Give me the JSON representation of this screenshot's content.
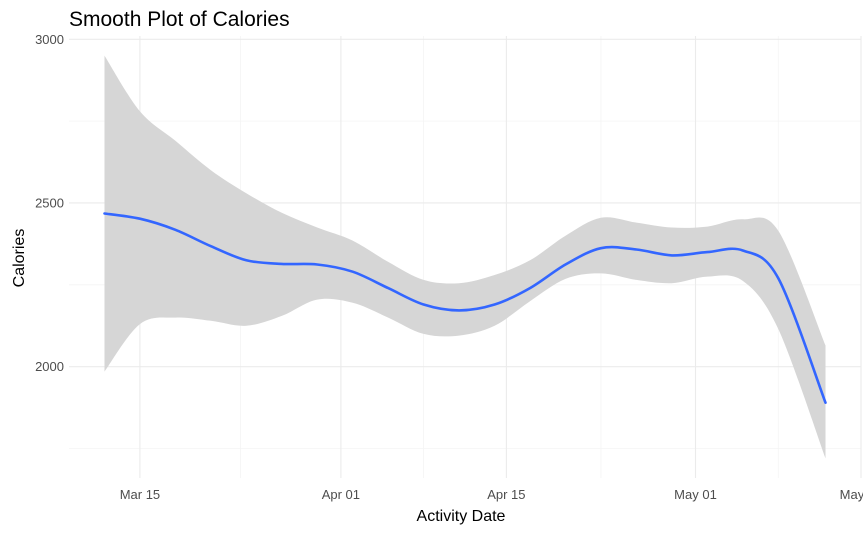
{
  "chart_data": {
    "type": "line",
    "title": "Smooth Plot of Calories",
    "xlabel": "Activity Date",
    "ylabel": "Calories",
    "x_ticks": [
      {
        "label": "Mar 15",
        "date": "2016-03-15"
      },
      {
        "label": "Apr 01",
        "date": "2016-04-01"
      },
      {
        "label": "Apr 15",
        "date": "2016-04-15"
      },
      {
        "label": "May 01",
        "date": "2016-05-01"
      },
      {
        "label": "May 15",
        "date": "2016-05-15"
      }
    ],
    "x_range": [
      "2016-03-09",
      "2016-05-15"
    ],
    "y_ticks": [
      2000,
      2500,
      3000
    ],
    "ylim": [
      1660,
      3010
    ],
    "grid": true,
    "colors": {
      "line": "#3366ff",
      "ribbon": "#d6d6d6",
      "grid_major": "#ebebeb",
      "grid_minor": "#f4f4f4"
    },
    "series": [
      {
        "x": [
          "2016-03-12",
          "2016-03-15",
          "2016-03-18",
          "2016-03-21",
          "2016-03-24",
          "2016-03-27",
          "2016-03-30",
          "2016-04-02",
          "2016-04-05",
          "2016-04-08",
          "2016-04-11",
          "2016-04-14",
          "2016-04-17",
          "2016-04-20",
          "2016-04-23",
          "2016-04-26",
          "2016-04-29",
          "2016-05-02",
          "2016-05-05",
          "2016-05-08",
          "2016-05-12"
        ],
        "y": [
          2468,
          2452,
          2418,
          2368,
          2325,
          2314,
          2312,
          2290,
          2240,
          2190,
          2172,
          2190,
          2240,
          2312,
          2362,
          2358,
          2340,
          2350,
          2355,
          2270,
          1890
        ],
        "lower": [
          1985,
          2130,
          2150,
          2140,
          2125,
          2155,
          2205,
          2195,
          2150,
          2100,
          2095,
          2125,
          2200,
          2268,
          2285,
          2265,
          2255,
          2275,
          2262,
          2115,
          1720
        ],
        "upper": [
          2950,
          2780,
          2690,
          2600,
          2530,
          2470,
          2425,
          2385,
          2320,
          2265,
          2255,
          2280,
          2325,
          2400,
          2455,
          2440,
          2425,
          2428,
          2450,
          2415,
          2065
        ]
      }
    ]
  }
}
